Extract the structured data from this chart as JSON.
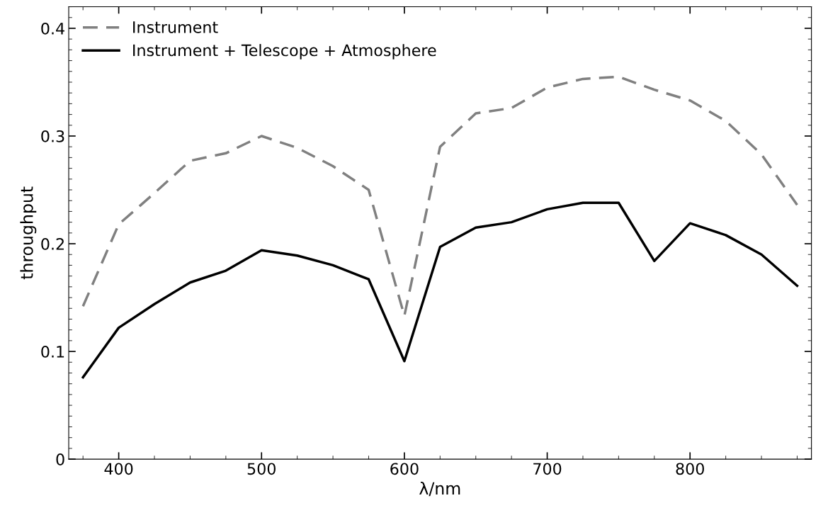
{
  "chart_data": {
    "type": "line",
    "xlabel": "λ/nm",
    "ylabel": "throughput",
    "x": [
      375,
      400,
      425,
      450,
      475,
      500,
      525,
      550,
      575,
      600,
      625,
      650,
      675,
      700,
      725,
      750,
      775,
      800,
      825,
      850,
      875
    ],
    "series": [
      {
        "name": "Instrument",
        "color": "#808080",
        "line_style": "dashed",
        "values": [
          0.142,
          0.218,
          0.247,
          0.277,
          0.284,
          0.3,
          0.289,
          0.272,
          0.25,
          0.133,
          0.29,
          0.321,
          0.326,
          0.345,
          0.353,
          0.355,
          0.343,
          0.333,
          0.314,
          0.283,
          0.236
        ]
      },
      {
        "name": "Instrument + Telescope + Atmosphere",
        "color": "#000000",
        "line_style": "solid",
        "values": [
          0.076,
          0.122,
          0.144,
          0.164,
          0.175,
          0.194,
          0.189,
          0.18,
          0.167,
          0.091,
          0.197,
          0.215,
          0.22,
          0.232,
          0.238,
          0.238,
          0.184,
          0.219,
          0.208,
          0.19,
          0.161
        ]
      }
    ],
    "xlim": [
      365,
      885
    ],
    "xticks": [
      400,
      500,
      600,
      700,
      800
    ],
    "ylim": [
      0,
      0.42
    ],
    "yticks": [
      {
        "value": 0,
        "label": "0"
      },
      0.1,
      0.2,
      0.3,
      0.4
    ],
    "grid": false,
    "legend": "top left",
    "marker": "none"
  }
}
